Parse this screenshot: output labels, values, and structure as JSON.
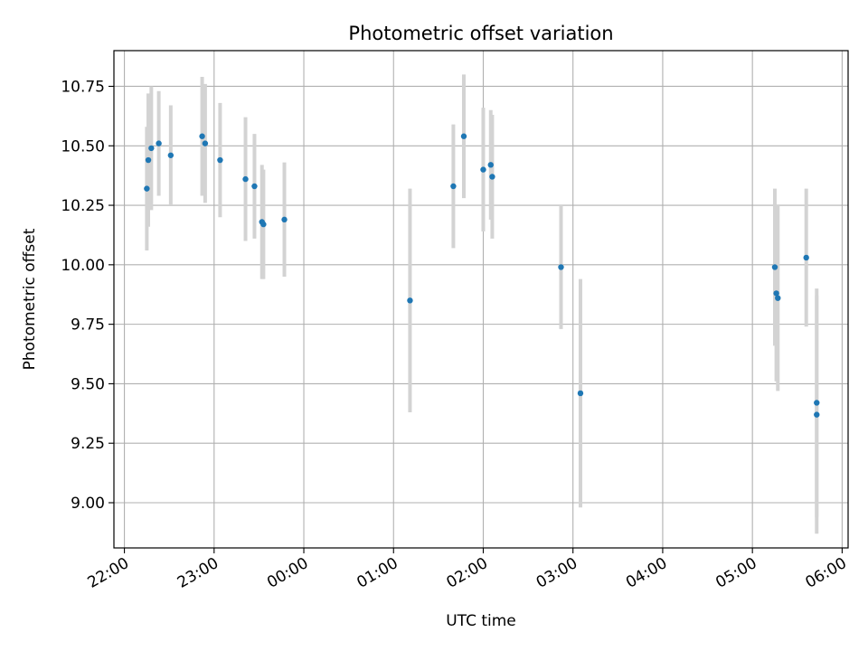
{
  "chart_data": {
    "type": "scatter",
    "title": "Photometric offset variation",
    "xlabel": "UTC time",
    "ylabel": "Photometric offset",
    "xlim": [
      "21:53",
      "06:04"
    ],
    "ylim": [
      8.81,
      10.9
    ],
    "grid": true,
    "x_ticks": [
      "22:00",
      "23:00",
      "00:00",
      "01:00",
      "02:00",
      "03:00",
      "04:00",
      "05:00",
      "06:00"
    ],
    "y_ticks": [
      9.0,
      9.25,
      9.5,
      9.75,
      10.0,
      10.25,
      10.5,
      10.75
    ],
    "colors": {
      "points": "#1f77b4",
      "errorbars": "#d3d3d3",
      "grid": "#b0b0b0"
    },
    "series": [
      {
        "points": [
          {
            "t": "22:15",
            "y": 10.32,
            "err": 0.26
          },
          {
            "t": "22:16",
            "y": 10.44,
            "err": 0.28
          },
          {
            "t": "22:18",
            "y": 10.49,
            "err": 0.26
          },
          {
            "t": "22:23",
            "y": 10.51,
            "err": 0.22
          },
          {
            "t": "22:31",
            "y": 10.46,
            "err": 0.21
          },
          {
            "t": "22:52",
            "y": 10.54,
            "err": 0.25
          },
          {
            "t": "22:54",
            "y": 10.51,
            "err": 0.25
          },
          {
            "t": "23:04",
            "y": 10.44,
            "err": 0.24
          },
          {
            "t": "23:21",
            "y": 10.36,
            "err": 0.26
          },
          {
            "t": "23:27",
            "y": 10.33,
            "err": 0.22
          },
          {
            "t": "23:32",
            "y": 10.18,
            "err": 0.24
          },
          {
            "t": "23:33",
            "y": 10.17,
            "err": 0.23
          },
          {
            "t": "23:47",
            "y": 10.19,
            "err": 0.24
          },
          {
            "t": "01:11",
            "y": 9.85,
            "err": 0.47
          },
          {
            "t": "01:40",
            "y": 10.33,
            "err": 0.26
          },
          {
            "t": "01:47",
            "y": 10.54,
            "err": 0.26
          },
          {
            "t": "02:00",
            "y": 10.4,
            "err": 0.26
          },
          {
            "t": "02:05",
            "y": 10.42,
            "err": 0.23
          },
          {
            "t": "02:06",
            "y": 10.37,
            "err": 0.26
          },
          {
            "t": "02:52",
            "y": 9.99,
            "err": 0.26
          },
          {
            "t": "03:05",
            "y": 9.46,
            "err": 0.48
          },
          {
            "t": "05:15",
            "y": 9.99,
            "err": 0.33
          },
          {
            "t": "05:16",
            "y": 9.88,
            "err": 0.37
          },
          {
            "t": "05:17",
            "y": 9.86,
            "err": 0.39
          },
          {
            "t": "05:36",
            "y": 10.03,
            "err": 0.29
          },
          {
            "t": "05:43",
            "y": 9.42,
            "err": 0.48
          },
          {
            "t": "05:43",
            "y": 9.37,
            "err": 0.5
          }
        ]
      }
    ]
  }
}
